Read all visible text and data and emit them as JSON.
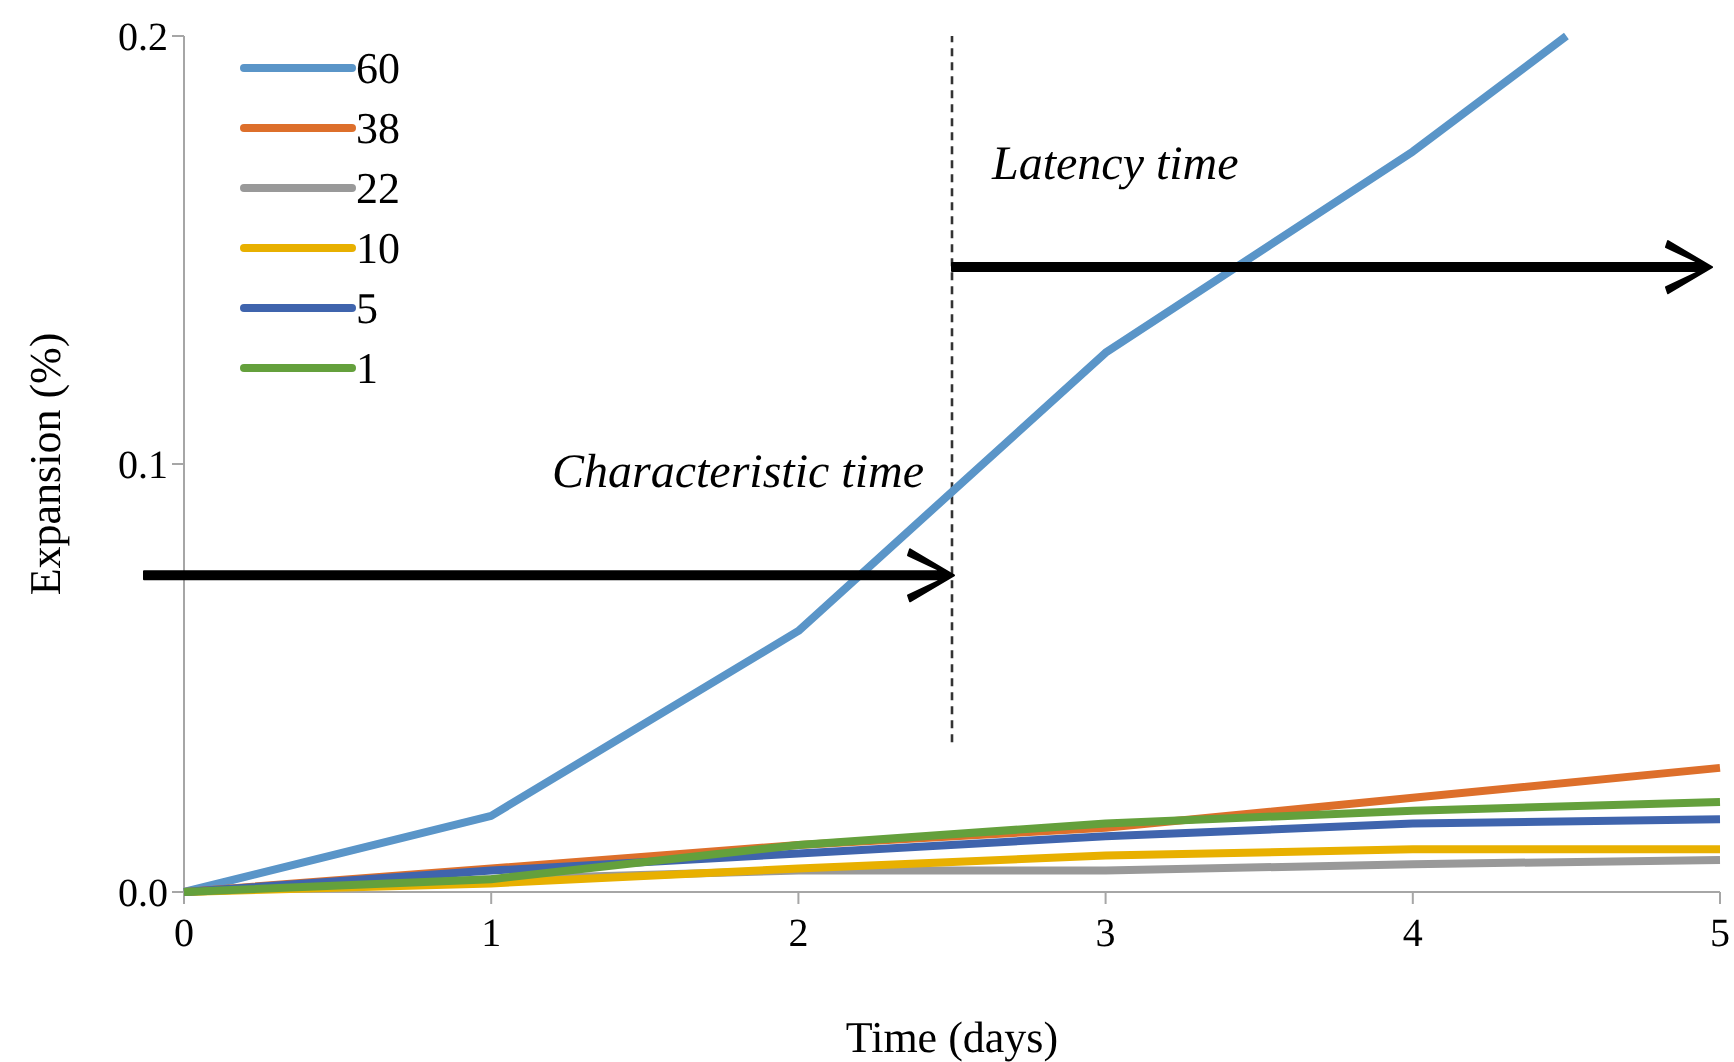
{
  "chart_data": {
    "type": "line",
    "xlabel": "Time (days)",
    "ylabel": "Expansion (%)",
    "x": [
      0,
      1,
      2,
      3,
      4,
      5
    ],
    "xlim": [
      0,
      5
    ],
    "xticks": [
      0,
      1,
      2,
      3,
      4,
      5
    ],
    "ylim": [
      0,
      0.2
    ],
    "yticks": [
      {
        "value": 0,
        "label": "0.0"
      },
      {
        "value": 0.1,
        "label": "0.1"
      },
      {
        "value": 0.2,
        "label": "0.2"
      }
    ],
    "grid": false,
    "legend": "top left",
    "line_style": "solid",
    "series": [
      {
        "name": "60",
        "color": "#5a95c8",
        "x": [
          0,
          1,
          2,
          3,
          4,
          4.5
        ],
        "values": [
          0,
          0.0178,
          0.061,
          0.126,
          0.173,
          0.2
        ]
      },
      {
        "name": "38",
        "color": "#dd6f2b",
        "values": [
          0,
          0.0055,
          0.011,
          0.015,
          0.022,
          0.029
        ]
      },
      {
        "name": "22",
        "color": "#999999",
        "values": [
          0,
          0.003,
          0.005,
          0.005,
          0.0065,
          0.0075
        ]
      },
      {
        "name": "10",
        "color": "#e8b000",
        "values": [
          0,
          0.002,
          0.0055,
          0.0085,
          0.01,
          0.01
        ]
      },
      {
        "name": "5",
        "color": "#3f64ad",
        "values": [
          0,
          0.005,
          0.009,
          0.013,
          0.016,
          0.017
        ]
      },
      {
        "name": "1",
        "color": "#64a03c",
        "values": [
          0,
          0.003,
          0.011,
          0.016,
          0.019,
          0.021
        ]
      }
    ],
    "ref_lines": [
      {
        "axis": "x",
        "value": 2.5,
        "line_style": "dashed",
        "color": "#333333"
      }
    ],
    "annotations": [
      "Characteristic time",
      "Latency time"
    ]
  }
}
